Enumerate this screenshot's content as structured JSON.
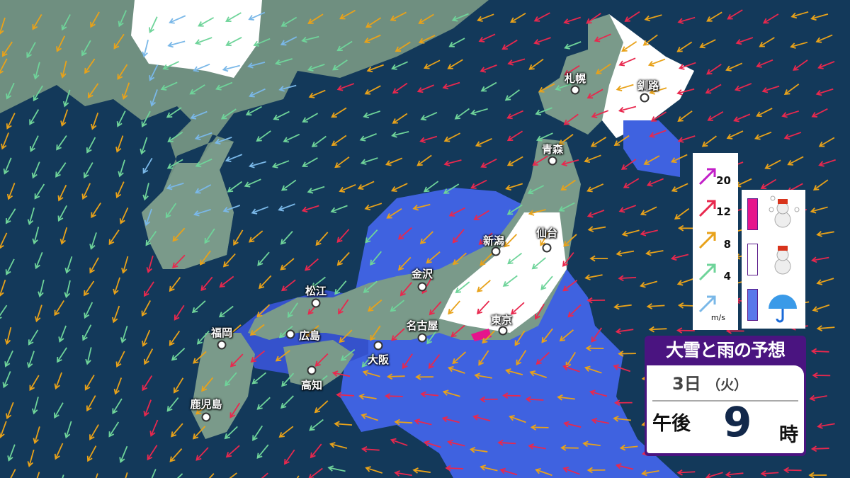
{
  "title": "大雪と雨の予想",
  "forecast": {
    "date": "3日",
    "weekday": "（火）",
    "ampm": "午後",
    "hour": "9",
    "hour_unit": "時"
  },
  "cities": [
    {
      "name": "札幌",
      "lx": 812,
      "ly": 100,
      "dx": 812,
      "dy": 127
    },
    {
      "name": "釧路",
      "lx": 915,
      "ly": 110,
      "dx": 910,
      "dy": 138
    },
    {
      "name": "青森",
      "lx": 780,
      "ly": 200,
      "dx": 780,
      "dy": 227
    },
    {
      "name": "新潟",
      "lx": 697,
      "ly": 329,
      "dx": 700,
      "dy": 355
    },
    {
      "name": "仙台",
      "lx": 772,
      "ly": 318,
      "dx": 772,
      "dy": 350
    },
    {
      "name": "金沢",
      "lx": 596,
      "ly": 376,
      "dx": 596,
      "dy": 405
    },
    {
      "name": "松江",
      "lx": 446,
      "ly": 400,
      "dx": 446,
      "dy": 428
    },
    {
      "name": "広島",
      "lx": 437,
      "ly": 463,
      "dx": 410,
      "dy": 472
    },
    {
      "name": "福岡",
      "lx": 313,
      "ly": 459,
      "dx": 313,
      "dy": 487
    },
    {
      "name": "名古屋",
      "lx": 596,
      "ly": 449,
      "dx": 596,
      "dy": 477
    },
    {
      "name": "東京",
      "lx": 708,
      "ly": 441,
      "dx": 710,
      "dy": 467
    },
    {
      "name": "大阪",
      "lx": 534,
      "ly": 497,
      "dx": 534,
      "dy": 488
    },
    {
      "name": "高知",
      "lx": 440,
      "ly": 533,
      "dx": 440,
      "dy": 523
    },
    {
      "name": "鹿児島",
      "lx": 291,
      "ly": 560,
      "dx": 291,
      "dy": 589
    }
  ],
  "wind_legend": {
    "unit": "m/s",
    "levels": [
      {
        "label": "20",
        "color": "#c21fc8"
      },
      {
        "label": "12",
        "color": "#e8284e"
      },
      {
        "label": "8",
        "color": "#e8a21a"
      },
      {
        "label": "4",
        "color": "#6fd49a"
      },
      {
        "label": "",
        "color": "#7ab8e8"
      }
    ]
  },
  "precip_legend": [
    {
      "name": "heavy-snow",
      "color": "#e6148c"
    },
    {
      "name": "snow",
      "color": "#ffffff"
    },
    {
      "name": "rain",
      "color": "#5a78ea"
    }
  ],
  "colors": {
    "sea": "#13395a",
    "land": "#7a9a8a",
    "rain": "#3f62e0",
    "snow": "#ffffff",
    "panel": "#4a1480"
  }
}
